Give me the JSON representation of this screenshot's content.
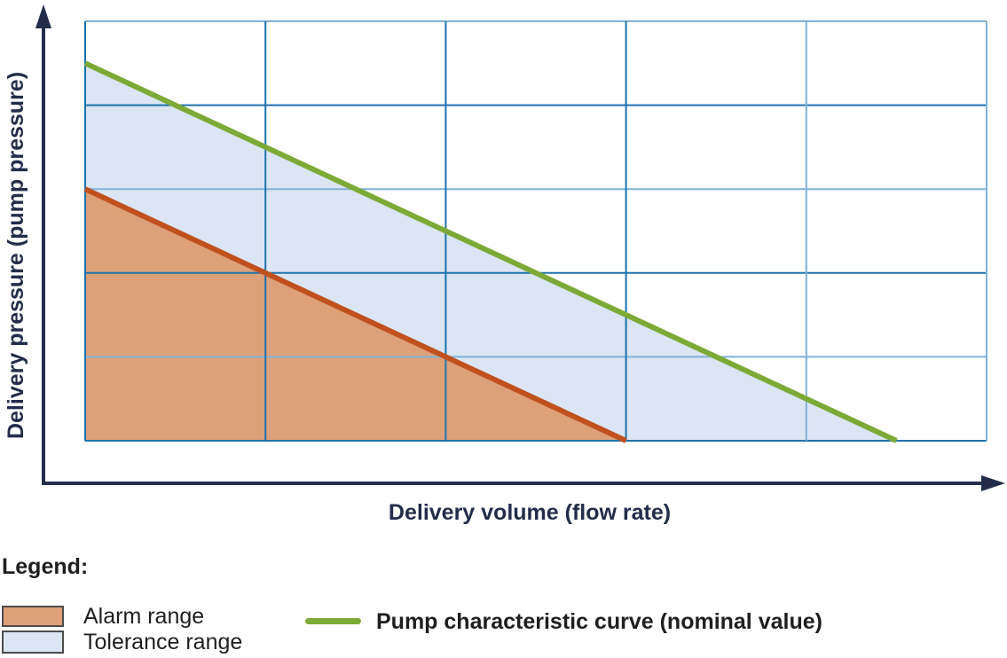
{
  "chart": {
    "y_axis_label": "Delivery pressure (pump pressure)",
    "x_axis_label": "Delivery volume (flow rate)",
    "grid": {
      "cols": 5,
      "rows": 5,
      "h_line_shades_top_to_bottom": [
        "light",
        "dark",
        "light",
        "dark",
        "light",
        "dark"
      ],
      "v_line_shades_left_to_right": [
        "dark",
        "dark",
        "dark",
        "dark",
        "light",
        "light"
      ]
    },
    "colors": {
      "axis": "#232d4b",
      "grid_dark": "#1d72ad",
      "grid_light": "#7fb2d9",
      "nominal_line": "#7da937",
      "alarm_line": "#c0511f",
      "alarm_fill": "#dea078",
      "tolerance_fill": "#dbe5f3",
      "swatch_border": "#4c4c4c",
      "legend_text": "#1f1f1f"
    }
  },
  "chart_data": {
    "type": "area",
    "title": "",
    "xlabel": "Delivery volume (flow rate)",
    "ylabel": "Delivery pressure (pump pressure)",
    "x_range_grid_units": [
      0,
      5
    ],
    "y_range_grid_units": [
      0,
      5
    ],
    "tick_labels": "none (qualitative axes, 5x5 grid)",
    "grid": true,
    "series": [
      {
        "name": "Tolerance range",
        "kind": "area",
        "vertices_grid_units": [
          [
            0,
            4.5
          ],
          [
            4.5,
            0
          ],
          [
            0,
            0
          ]
        ],
        "fill_key": "tolerance_fill"
      },
      {
        "name": "Alarm range",
        "kind": "area",
        "vertices_grid_units": [
          [
            0,
            3
          ],
          [
            3,
            0
          ],
          [
            0,
            0
          ]
        ],
        "fill_key": "alarm_fill",
        "edge_key": "alarm_line",
        "edge_points_grid_units": [
          [
            0,
            3
          ],
          [
            3,
            0
          ]
        ]
      },
      {
        "name": "Pump characteristic curve (nominal value)",
        "kind": "line",
        "points_grid_units": [
          [
            0,
            4.5
          ],
          [
            4.5,
            0
          ]
        ],
        "stroke_key": "nominal_line"
      }
    ],
    "legend_position": "bottom-left"
  },
  "legend": {
    "title": "Legend:",
    "items": [
      {
        "swatch_key": "alarm_fill",
        "label": "Alarm range"
      },
      {
        "swatch_key": "tolerance_fill",
        "label": "Tolerance range"
      }
    ],
    "line_item": {
      "label": "Pump characteristic curve (nominal value)",
      "color_key": "nominal_line"
    }
  }
}
